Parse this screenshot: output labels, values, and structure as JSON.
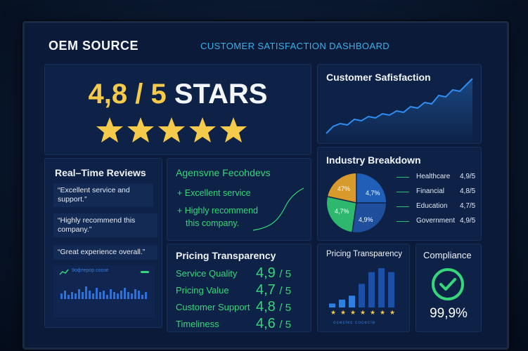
{
  "header": {
    "brand": "OEM SOURCE",
    "title": "CUSTOMER SATISFACTION DASHBOARD"
  },
  "rating": {
    "value": "4,8 / 5",
    "label": "STARS",
    "stars": 5,
    "star_color": "#f5c94a"
  },
  "satisfaction": {
    "title": "Customer Safisfaction",
    "line_color": "#2f8cf0"
  },
  "reviews": {
    "title": "Real–Time Reviews",
    "items": [
      "“Excellent service and support.”",
      "“Highly recommend this company.”",
      "“Great experience overall.”"
    ],
    "chart_caption": "9офтерор соозе"
  },
  "feedback": {
    "title": "Agensvne Fecohdevs",
    "items": [
      "+ Excellent service",
      "+ Highly recommend",
      "this company."
    ]
  },
  "industry": {
    "title": "Industry Breakdown",
    "pie_labels": [
      "47%",
      "4,7%",
      "4,7%",
      "4,9%"
    ],
    "rows": [
      {
        "name": "Healthcare",
        "score": "4,9/5"
      },
      {
        "name": "Financial",
        "score": "4,8/5"
      },
      {
        "name": "Education",
        "score": "4,7/5"
      },
      {
        "name": "Government",
        "score": "4,9/5"
      }
    ]
  },
  "pricing": {
    "title": "Pricing Transparency",
    "rows": [
      {
        "label": "Service Quality",
        "score": "4,9",
        "den": "/ 5"
      },
      {
        "label": "Pricing Value",
        "score": "4,7",
        "den": "/ 5"
      },
      {
        "label": "Customer Support",
        "score": "4,8",
        "den": "/ 5"
      },
      {
        "label": "Timeliness",
        "score": "4,6",
        "den": "/ 5"
      }
    ]
  },
  "pricing2": {
    "title": "Pricing Transparency",
    "caption": "осесікс сосесіе",
    "bars": [
      1,
      2,
      3,
      6,
      9,
      10,
      9
    ]
  },
  "compliance": {
    "title": "Compliance",
    "value": "99,9%",
    "accent": "#36d67a"
  }
}
